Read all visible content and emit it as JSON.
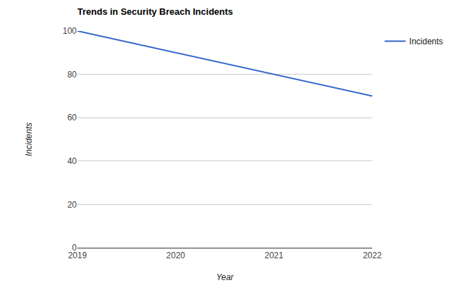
{
  "chart_data": {
    "type": "line",
    "title": "Trends in Security Breach Incidents",
    "x_label": "Year",
    "y_label": "Incidents",
    "categories": [
      "2019",
      "2020",
      "2021",
      "2022"
    ],
    "series": [
      {
        "name": "Incidents",
        "color": "#3366cc",
        "values": [
          100,
          90,
          80,
          70
        ]
      }
    ],
    "ylim": [
      0,
      100
    ],
    "yticks": [
      0,
      20,
      40,
      60,
      80,
      100
    ],
    "grid": true,
    "legend": "right"
  }
}
